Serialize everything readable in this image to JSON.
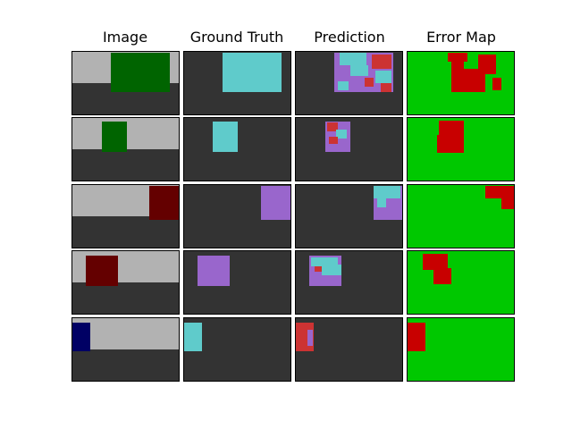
{
  "headers": [
    "Image",
    "Ground Truth",
    "Prediction",
    "Error Map"
  ],
  "colors": {
    "wall": "#b2b2b2",
    "floor": "#333333",
    "green_object": "#006400",
    "dark_red_object": "#640000",
    "navy_object": "#000064",
    "cyan_class": "#5fcbcb",
    "purple_class": "#9966cc",
    "red_class": "#cc3333",
    "error_correct": "#00c800",
    "error_wrong": "#c80000"
  },
  "rows": [
    {
      "object_color": "green_object",
      "gt_class": "cyan_class"
    },
    {
      "object_color": "green_object",
      "gt_class": "cyan_class"
    },
    {
      "object_color": "dark_red_object",
      "gt_class": "purple_class"
    },
    {
      "object_color": "dark_red_object",
      "gt_class": "purple_class"
    },
    {
      "object_color": "navy_object",
      "gt_class": "cyan_class"
    }
  ]
}
